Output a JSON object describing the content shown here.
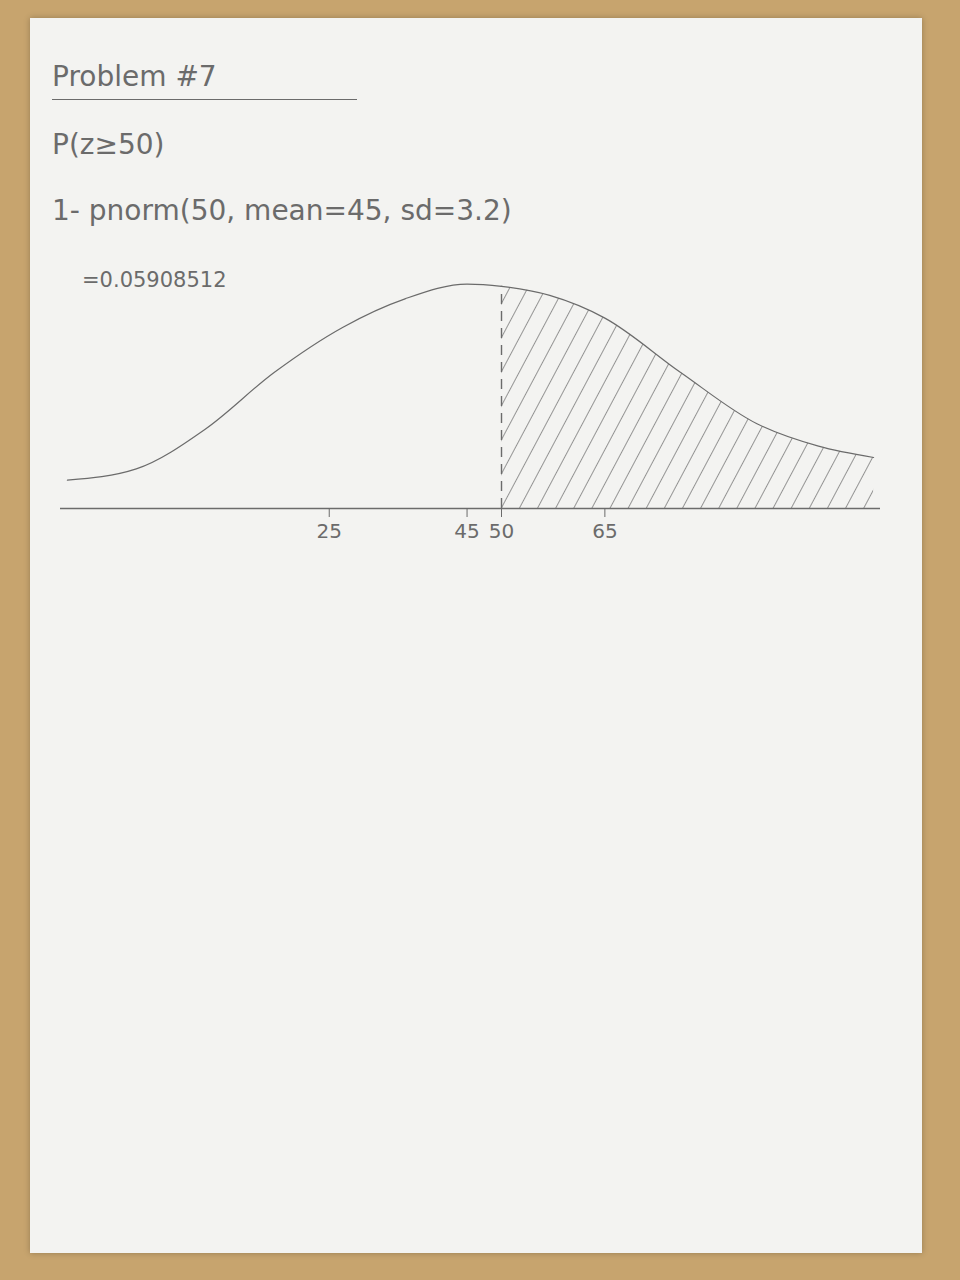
{
  "chart_data": {
    "type": "area",
    "title": "Problem #7",
    "annotations": [
      "P(z≥50)",
      "1- pnorm(50, mean=45, sd=3.2)",
      "=0.05908512"
    ],
    "x": [
      -13,
      -3,
      7,
      17,
      27,
      36,
      45,
      50,
      57,
      65,
      76,
      87,
      96,
      104
    ],
    "values": [
      25,
      35,
      70,
      120,
      160,
      185,
      198,
      196,
      188,
      168,
      120,
      75,
      55,
      45
    ],
    "shaded_from": 50,
    "color": "#6b6b6b",
    "xlim": [
      -14,
      105
    ],
    "xticks": [
      25,
      45,
      50,
      65
    ],
    "ylim": [
      0,
      210
    ],
    "tick_labels": "x",
    "grid": false
  }
}
